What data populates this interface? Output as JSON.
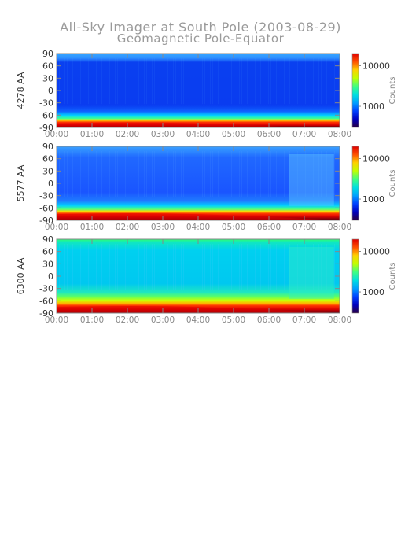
{
  "chart_data": {
    "type": "heatmap",
    "title": "All-Sky Imager at South Pole (2003-08-29)",
    "subtitle": "Geomagnetic Pole-Equator",
    "x_ticks": [
      "00:00",
      "01:00",
      "02:00",
      "03:00",
      "04:00",
      "05:00",
      "06:00",
      "07:00",
      "08:00"
    ],
    "x_range": [
      "00:00",
      "08:00"
    ],
    "y_ticks": [
      90,
      60,
      30,
      0,
      -30,
      -60,
      -90
    ],
    "y_range": [
      -90,
      90
    ],
    "colorbar": {
      "label": "Counts",
      "scale": "log",
      "ticks": [
        10000,
        1000
      ],
      "tick_labels": [
        "10000",
        "1000"
      ]
    },
    "panels": [
      {
        "ylabel": "4278 AA",
        "background": "deep-blue",
        "bright_edge_y": -80,
        "activity": "low",
        "colorbar_range": [
          300,
          20000
        ]
      },
      {
        "ylabel": "5577 AA",
        "background": "blue",
        "bright_edge_y": -75,
        "activity": "medium, aurora near 06:30-08:00",
        "colorbar_range": [
          300,
          20000
        ]
      },
      {
        "ylabel": "6300 AA",
        "background": "cyan-green",
        "bright_edge_y": -75,
        "activity": "high",
        "colorbar_range": [
          300,
          20000
        ]
      }
    ],
    "colormap": [
      "#2a0040",
      "#0000c0",
      "#0040ff",
      "#00a0ff",
      "#00e0e0",
      "#40ff80",
      "#c0ff00",
      "#ffd000",
      "#ff5000",
      "#e00000"
    ]
  }
}
